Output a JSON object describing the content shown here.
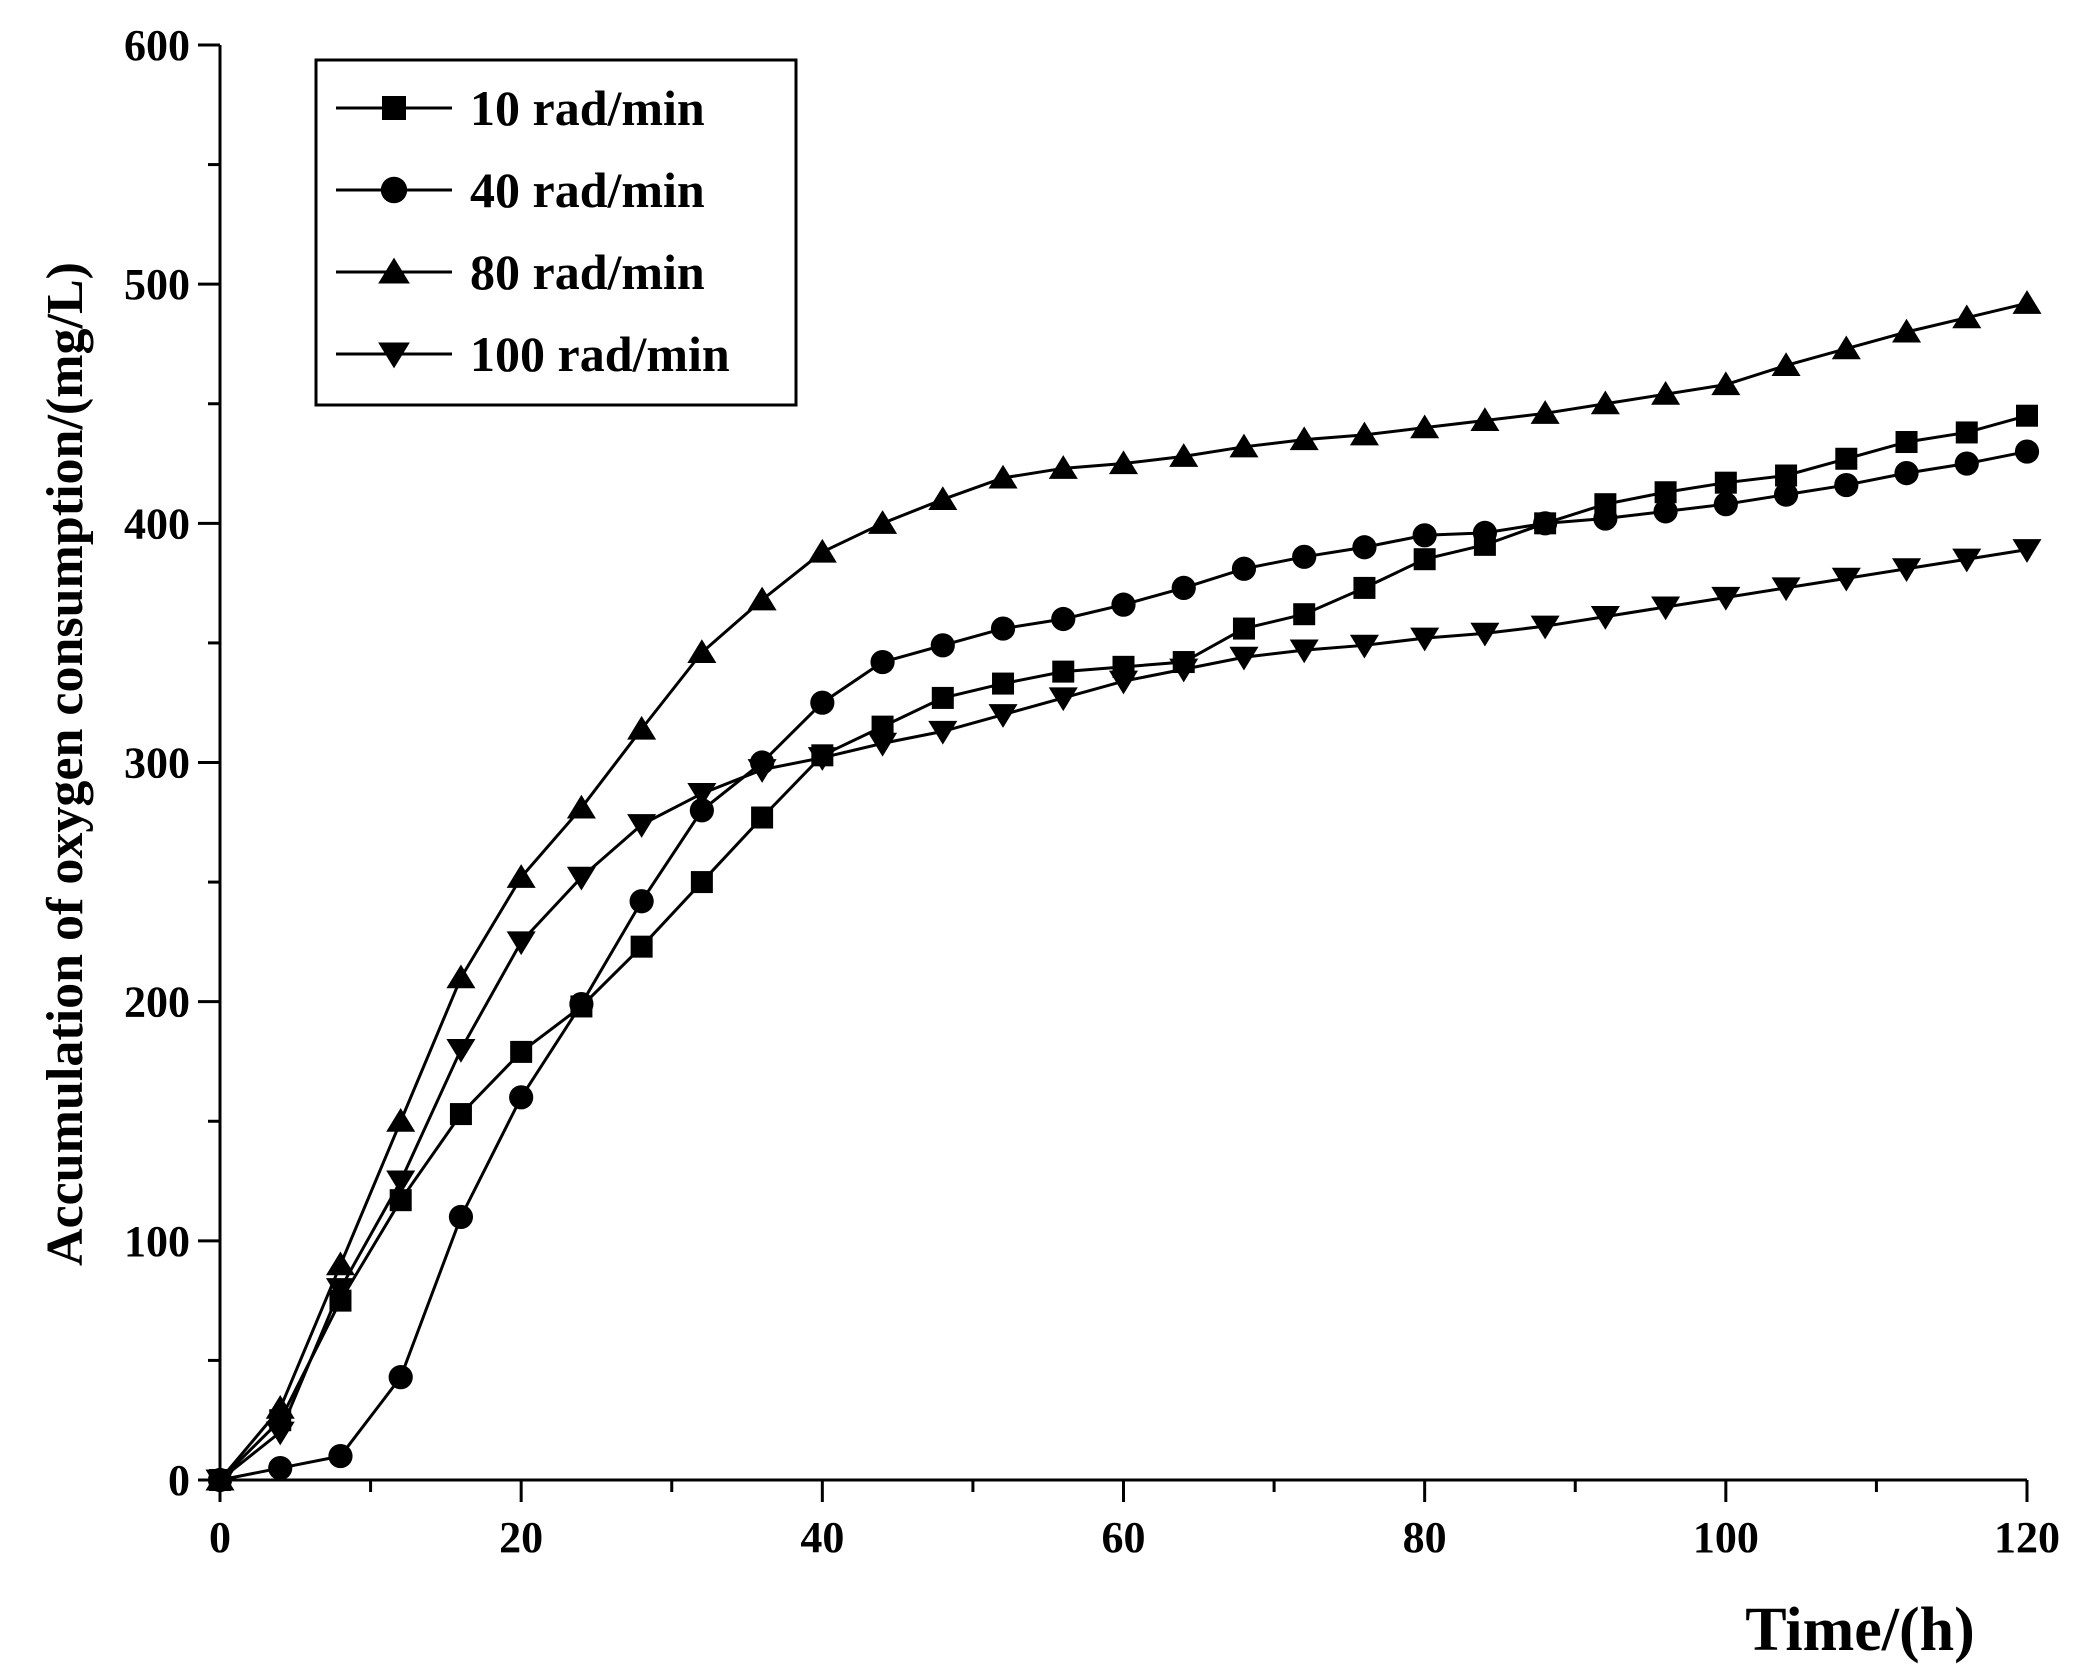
{
  "chart_data": {
    "type": "line",
    "title": "",
    "xlabel": "Time/(h)",
    "ylabel": "Accumulation of oxygen consumption/(mg/L)",
    "xlim": [
      0,
      120
    ],
    "ylim": [
      0,
      600
    ],
    "xticks": [
      0,
      20,
      40,
      60,
      80,
      100,
      120
    ],
    "yticks": [
      0,
      100,
      200,
      300,
      400,
      500,
      600
    ],
    "grid": false,
    "legend_position": "top-left",
    "colors": {
      "line": "#000000",
      "axis": "#000000",
      "background": "#ffffff"
    },
    "series": [
      {
        "name": "10 rad/min",
        "marker": "square",
        "x": [
          0,
          4,
          8,
          12,
          16,
          20,
          24,
          28,
          32,
          36,
          40,
          44,
          48,
          52,
          56,
          60,
          64,
          68,
          72,
          76,
          80,
          84,
          88,
          92,
          96,
          100,
          104,
          108,
          112,
          116,
          120
        ],
        "y": [
          0,
          25,
          75,
          117,
          153,
          179,
          198,
          223,
          250,
          277,
          303,
          315,
          327,
          333,
          338,
          340,
          342,
          356,
          362,
          373,
          385,
          391,
          400,
          408,
          413,
          417,
          420,
          427,
          434,
          438,
          445
        ]
      },
      {
        "name": "40 rad/min",
        "marker": "circle",
        "x": [
          0,
          4,
          8,
          12,
          16,
          20,
          24,
          28,
          32,
          36,
          40,
          44,
          48,
          52,
          56,
          60,
          64,
          68,
          72,
          76,
          80,
          84,
          88,
          92,
          96,
          100,
          104,
          108,
          112,
          116,
          120
        ],
        "y": [
          0,
          5,
          10,
          43,
          110,
          160,
          199,
          242,
          280,
          300,
          325,
          342,
          349,
          356,
          360,
          366,
          373,
          381,
          386,
          390,
          395,
          396,
          400,
          402,
          405,
          408,
          412,
          416,
          421,
          425,
          430
        ]
      },
      {
        "name": "80 rad/min",
        "marker": "triangle-up",
        "x": [
          0,
          4,
          8,
          12,
          16,
          20,
          24,
          28,
          32,
          36,
          40,
          44,
          48,
          52,
          56,
          60,
          64,
          68,
          72,
          76,
          80,
          84,
          88,
          92,
          96,
          100,
          104,
          108,
          112,
          116,
          120
        ],
        "y": [
          0,
          30,
          90,
          150,
          210,
          252,
          281,
          314,
          346,
          368,
          388,
          400,
          410,
          419,
          423,
          425,
          428,
          432,
          435,
          437,
          440,
          443,
          446,
          450,
          454,
          458,
          466,
          473,
          480,
          486,
          492
        ]
      },
      {
        "name": "100 rad/min",
        "marker": "triangle-down",
        "x": [
          0,
          4,
          8,
          12,
          16,
          20,
          24,
          28,
          32,
          36,
          40,
          44,
          48,
          52,
          56,
          60,
          64,
          68,
          72,
          76,
          80,
          84,
          88,
          92,
          96,
          100,
          104,
          108,
          112,
          116,
          120
        ],
        "y": [
          0,
          20,
          80,
          125,
          180,
          225,
          252,
          274,
          287,
          297,
          302,
          308,
          313,
          320,
          327,
          334,
          339,
          344,
          347,
          349,
          352,
          354,
          357,
          361,
          365,
          369,
          373,
          377,
          381,
          385,
          389
        ]
      }
    ]
  }
}
